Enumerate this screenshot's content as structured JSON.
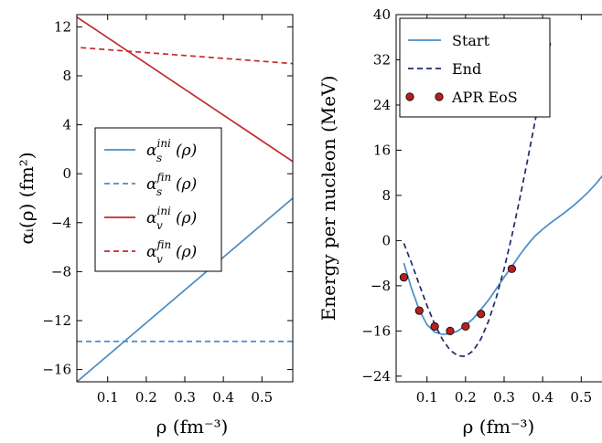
{
  "chart_data": [
    {
      "type": "line",
      "xlabel": "ρ (fm⁻³)",
      "ylabel": "αᵢ(ρ) (fm²)",
      "xlim": [
        0.02,
        0.58
      ],
      "ylim": [
        -17,
        13
      ],
      "xticks": [
        0.1,
        0.2,
        0.3,
        0.4,
        0.5
      ],
      "xtick_labels": [
        "0.1",
        "0.2",
        "0.3",
        "0.4",
        "0.5"
      ],
      "yticks": [
        -16,
        -12,
        -8,
        -4,
        0,
        4,
        8,
        12
      ],
      "ytick_labels": [
        "−16",
        "−12",
        "−8",
        "−4",
        "0",
        "4",
        "8",
        "12"
      ],
      "grid": false,
      "legend_position": "center-left",
      "series": [
        {
          "name": "α_s^{ini}(ρ)",
          "legend_symbol": "α",
          "legend_sub": "s",
          "legend_sup": "ini",
          "legend_tail": "(ρ)",
          "color": "#4a8cc4",
          "dash": "solid",
          "x": [
            0.02,
            0.58
          ],
          "y": [
            -17.0,
            -2.0
          ]
        },
        {
          "name": "α_s^{fin}(ρ)",
          "legend_symbol": "α",
          "legend_sub": "s",
          "legend_sup": "fin",
          "legend_tail": "(ρ)",
          "color": "#4a8cc4",
          "dash": "dashed",
          "x": [
            0.02,
            0.58
          ],
          "y": [
            -13.7,
            -13.7
          ]
        },
        {
          "name": "α_v^{ini}(ρ)",
          "legend_symbol": "α",
          "legend_sub": "v",
          "legend_sup": "ini",
          "legend_tail": "(ρ)",
          "color": "#c42a2a",
          "dash": "solid",
          "x": [
            0.02,
            0.58
          ],
          "y": [
            12.8,
            1.0
          ]
        },
        {
          "name": "α_v^{fin}(ρ)",
          "legend_symbol": "α",
          "legend_sub": "v",
          "legend_sup": "fin",
          "legend_tail": "(ρ)",
          "color": "#c42a2a",
          "dash": "dashed",
          "x": [
            0.03,
            0.58
          ],
          "y": [
            10.3,
            9.0
          ]
        }
      ]
    },
    {
      "type": "line",
      "xlabel": "ρ (fm⁻³)",
      "ylabel": "Energy per nucleon (MeV)",
      "xlim": [
        0.02,
        0.58
      ],
      "ylim": [
        -25,
        40
      ],
      "xticks": [
        0.1,
        0.2,
        0.3,
        0.4,
        0.5
      ],
      "xtick_labels": [
        "0.1",
        "0.2",
        "0.3",
        "0.4",
        "0.5"
      ],
      "yticks": [
        -24,
        -16,
        -8,
        0,
        8,
        16,
        24,
        32,
        40
      ],
      "ytick_labels": [
        "−24",
        "−16",
        "−8",
        "0",
        "8",
        "16",
        "24",
        "32",
        "40"
      ],
      "grid": false,
      "legend_position": "top-left",
      "series": [
        {
          "name": "Start",
          "color": "#4a8cc4",
          "dash": "solid",
          "x": [
            0.04,
            0.06,
            0.08,
            0.1,
            0.12,
            0.14,
            0.16,
            0.18,
            0.2,
            0.22,
            0.24,
            0.26,
            0.28,
            0.3,
            0.32,
            0.34,
            0.36,
            0.38,
            0.4,
            0.42,
            0.44,
            0.46,
            0.48,
            0.5,
            0.52,
            0.54,
            0.56,
            0.58
          ],
          "y": [
            -4.0,
            -8.5,
            -12.3,
            -14.9,
            -16.2,
            -16.6,
            -16.5,
            -16.0,
            -15.0,
            -13.8,
            -12.2,
            -10.5,
            -8.5,
            -6.5,
            -4.6,
            -2.6,
            -0.8,
            0.8,
            2.0,
            3.1,
            4.1,
            5.1,
            6.2,
            7.4,
            8.7,
            10.2,
            11.9,
            13.8
          ]
        },
        {
          "name": "End",
          "color": "#1f2a6e",
          "dash": "dashed",
          "x": [
            0.04,
            0.06,
            0.08,
            0.1,
            0.12,
            0.14,
            0.16,
            0.18,
            0.2,
            0.22,
            0.24,
            0.26,
            0.28,
            0.3,
            0.32,
            0.34,
            0.36,
            0.38,
            0.4,
            0.42
          ],
          "y": [
            -0.5,
            -4.0,
            -7.8,
            -11.5,
            -14.8,
            -17.5,
            -19.4,
            -20.4,
            -20.5,
            -19.5,
            -17.4,
            -14.2,
            -10.0,
            -5.0,
            0.8,
            7.2,
            14.0,
            21.0,
            28.0,
            35.0
          ]
        },
        {
          "name": "APR EoS",
          "color": "#b51f1f",
          "marker": "circle",
          "x": [
            0.04,
            0.08,
            0.12,
            0.16,
            0.2,
            0.24,
            0.32
          ],
          "y": [
            -6.5,
            -12.4,
            -15.2,
            -16.0,
            -15.2,
            -13.0,
            -5.0
          ]
        }
      ]
    }
  ]
}
